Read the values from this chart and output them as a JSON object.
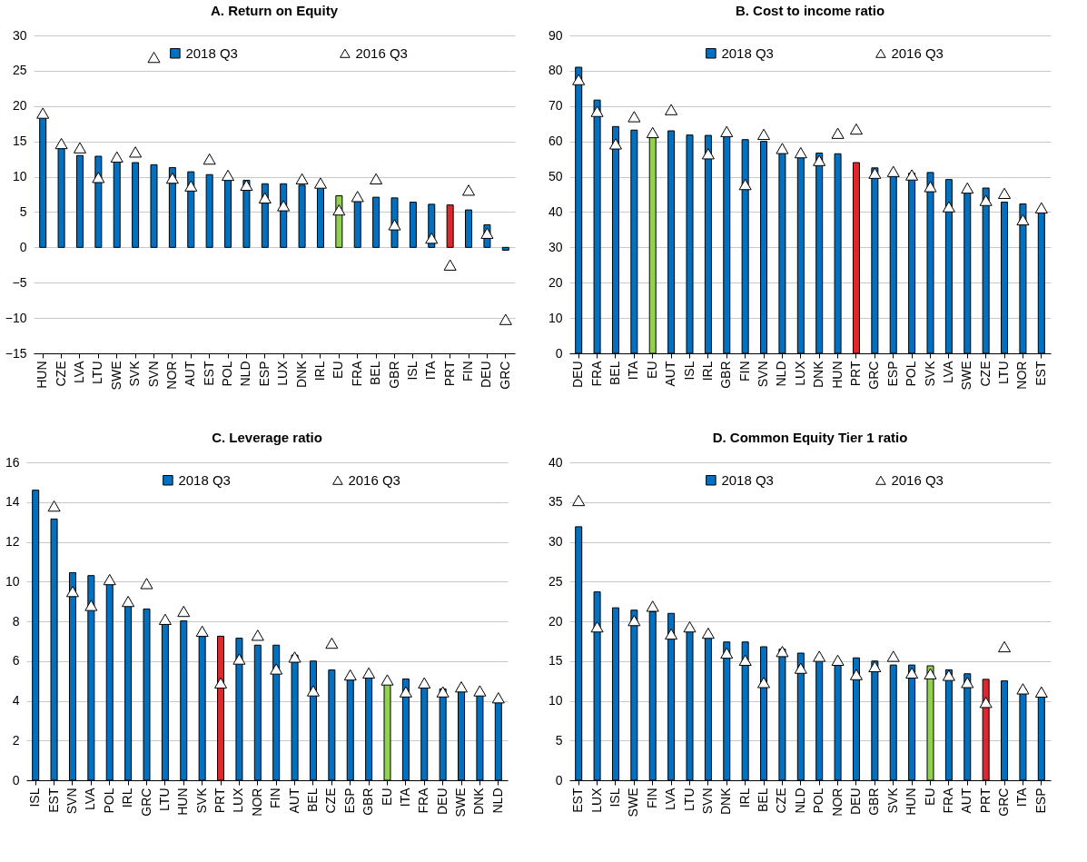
{
  "chart_data": [
    {
      "type": "bar",
      "title": "A. Return on Equity",
      "categories": [
        "HUN",
        "CZE",
        "LVA",
        "LTU",
        "SWE",
        "SVK",
        "SVN",
        "NOR",
        "AUT",
        "EST",
        "POL",
        "NLD",
        "ESP",
        "LUX",
        "DNK",
        "IRL",
        "EU",
        "FRA",
        "BEL",
        "GBR",
        "ISL",
        "ITA",
        "PRT",
        "FIN",
        "DEU",
        "GRC"
      ],
      "series": [
        {
          "name": "2018 Q3",
          "color": "#0070c0",
          "colors": [
            "#0070c0",
            "#0070c0",
            "#0070c0",
            "#0070c0",
            "#0070c0",
            "#0070c0",
            "#0070c0",
            "#0070c0",
            "#0070c0",
            "#0070c0",
            "#0070c0",
            "#0070c0",
            "#0070c0",
            "#0070c0",
            "#0070c0",
            "#0070c0",
            "#92d050",
            "#0070c0",
            "#0070c0",
            "#0070c0",
            "#0070c0",
            "#0070c0",
            "#e0262a",
            "#0070c0",
            "#0070c0",
            "#0070c0"
          ],
          "values": [
            18.5,
            14,
            13,
            12.9,
            12.2,
            12,
            11.7,
            11.3,
            10.7,
            10.3,
            9.7,
            9.5,
            9,
            9,
            8.8,
            8.5,
            7.3,
            6.6,
            7.1,
            7,
            6.4,
            6.1,
            6,
            5.3,
            3.2,
            -0.4
          ]
        },
        {
          "name": "2016 Q3",
          "type": "scatter",
          "color": "#ffffff",
          "values": [
            19,
            14.7,
            14.1,
            9.9,
            12.8,
            13.5,
            26.9,
            9.8,
            8.7,
            12.5,
            10.2,
            8.8,
            7,
            5.9,
            9.7,
            9.1,
            5.3,
            7.2,
            9.7,
            3.2,
            null,
            1.3,
            -2.5,
            8.1,
            2,
            -10.2
          ]
        }
      ],
      "ylim": [
        -15,
        30
      ],
      "yticks": [
        -15,
        -10,
        -5,
        0,
        5,
        10,
        15,
        20,
        25,
        30
      ],
      "grid": "y",
      "legend": "top",
      "marker": "triangle"
    },
    {
      "type": "bar",
      "title": "B. Cost to income ratio",
      "categories": [
        "DEU",
        "FRA",
        "BEL",
        "ITA",
        "EU",
        "AUT",
        "ISL",
        "IRL",
        "GBR",
        "FIN",
        "SVN",
        "NLD",
        "LUX",
        "DNK",
        "HUN",
        "PRT",
        "GRC",
        "ESP",
        "POL",
        "SVK",
        "LVA",
        "SWE",
        "CZE",
        "LTU",
        "NOR",
        "EST"
      ],
      "series": [
        {
          "name": "2018 Q3",
          "color": "#0070c0",
          "colors": [
            "#0070c0",
            "#0070c0",
            "#0070c0",
            "#0070c0",
            "#92d050",
            "#0070c0",
            "#0070c0",
            "#0070c0",
            "#0070c0",
            "#0070c0",
            "#0070c0",
            "#0070c0",
            "#0070c0",
            "#0070c0",
            "#0070c0",
            "#e0262a",
            "#0070c0",
            "#0070c0",
            "#0070c0",
            "#0070c0",
            "#0070c0",
            "#0070c0",
            "#0070c0",
            "#0070c0",
            "#0070c0",
            "#0070c0"
          ],
          "values": [
            81,
            71.7,
            64.2,
            63.2,
            61.6,
            63,
            61.8,
            61.7,
            61.5,
            60.5,
            60,
            57,
            55.8,
            56.7,
            56.5,
            54,
            52.5,
            50.5,
            51,
            51.2,
            49.2,
            45.7,
            46.8,
            42.8,
            42.3,
            39.8
          ]
        },
        {
          "name": "2016 Q3",
          "type": "scatter",
          "color": "#ffffff",
          "values": [
            77.5,
            68.5,
            59.3,
            67,
            62.5,
            69,
            null,
            56.5,
            62.8,
            47.8,
            62,
            58,
            56.8,
            54.6,
            62.3,
            63.5,
            51,
            51.5,
            50.5,
            47.2,
            41.5,
            46.8,
            43.3,
            45.3,
            37.8,
            41.2
          ]
        }
      ],
      "ylim": [
        0,
        90
      ],
      "yticks": [
        0,
        10,
        20,
        30,
        40,
        50,
        60,
        70,
        80,
        90
      ],
      "grid": "y",
      "legend": "top",
      "marker": "triangle"
    },
    {
      "type": "bar",
      "title": "C. Leverage ratio",
      "categories": [
        "ISL",
        "EST",
        "SVN",
        "LVA",
        "POL",
        "IRL",
        "GRC",
        "LTU",
        "HUN",
        "SVK",
        "PRT",
        "LUX",
        "NOR",
        "FIN",
        "AUT",
        "BEL",
        "CZE",
        "ESP",
        "GBR",
        "EU",
        "ITA",
        "FRA",
        "DEU",
        "SWE",
        "DNK",
        "NLD"
      ],
      "series": [
        {
          "name": "2018 Q3",
          "color": "#0070c0",
          "colors": [
            "#0070c0",
            "#0070c0",
            "#0070c0",
            "#0070c0",
            "#0070c0",
            "#0070c0",
            "#0070c0",
            "#0070c0",
            "#0070c0",
            "#0070c0",
            "#e0262a",
            "#0070c0",
            "#0070c0",
            "#0070c0",
            "#0070c0",
            "#0070c0",
            "#0070c0",
            "#0070c0",
            "#0070c0",
            "#92d050",
            "#0070c0",
            "#0070c0",
            "#0070c0",
            "#0070c0",
            "#0070c0",
            "#0070c0"
          ],
          "values": [
            14.6,
            13.15,
            10.45,
            10.3,
            9.9,
            8.8,
            8.62,
            7.95,
            8.02,
            7.3,
            7.25,
            7.15,
            6.8,
            6.8,
            6.3,
            6,
            5.55,
            5.2,
            5.2,
            4.9,
            5.1,
            4.75,
            4.6,
            4.5,
            4.35,
            3.95
          ]
        },
        {
          "name": "2016 Q3",
          "type": "scatter",
          "color": "#ffffff",
          "values": [
            null,
            13.8,
            9.5,
            8.8,
            10.1,
            9,
            9.9,
            8.1,
            8.5,
            7.5,
            4.9,
            6.1,
            7.3,
            5.6,
            6.2,
            4.5,
            6.9,
            5.3,
            5.4,
            5.05,
            4.45,
            4.9,
            4.45,
            4.7,
            4.5,
            4.15
          ]
        }
      ],
      "ylim": [
        0,
        16
      ],
      "yticks": [
        0,
        2,
        4,
        6,
        8,
        10,
        12,
        14,
        16
      ],
      "grid": "y",
      "legend": "top",
      "marker": "triangle"
    },
    {
      "type": "bar",
      "title": "D. Common Equity Tier 1 ratio",
      "categories": [
        "EST",
        "LUX",
        "ISL",
        "SWE",
        "FIN",
        "LVA",
        "LTU",
        "SVN",
        "DNK",
        "IRL",
        "BEL",
        "CZE",
        "NLD",
        "POL",
        "NOR",
        "DEU",
        "GBR",
        "SVK",
        "HUN",
        "EU",
        "FRA",
        "AUT",
        "PRT",
        "GRC",
        "ITA",
        "ESP"
      ],
      "series": [
        {
          "name": "2018 Q3",
          "color": "#0070c0",
          "colors": [
            "#0070c0",
            "#0070c0",
            "#0070c0",
            "#0070c0",
            "#0070c0",
            "#0070c0",
            "#0070c0",
            "#0070c0",
            "#0070c0",
            "#0070c0",
            "#0070c0",
            "#0070c0",
            "#0070c0",
            "#0070c0",
            "#0070c0",
            "#0070c0",
            "#0070c0",
            "#0070c0",
            "#0070c0",
            "#92d050",
            "#0070c0",
            "#0070c0",
            "#e0262a",
            "#0070c0",
            "#0070c0",
            "#0070c0"
          ],
          "values": [
            31.9,
            23.7,
            21.7,
            21.4,
            21.2,
            21,
            19,
            18.2,
            17.4,
            17.4,
            16.8,
            16.5,
            16,
            15.5,
            15,
            15.4,
            15,
            14.5,
            14.5,
            14.4,
            13.9,
            13.4,
            12.7,
            12.5,
            11.5,
            10.6
          ]
        },
        {
          "name": "2016 Q3",
          "type": "scatter",
          "color": "#ffffff",
          "values": [
            35.2,
            19.3,
            null,
            20.1,
            21.9,
            18.4,
            19.3,
            18.5,
            16,
            15.1,
            12.3,
            16.2,
            14.1,
            15.6,
            15.1,
            13.3,
            14.3,
            15.6,
            13.5,
            13.4,
            13.2,
            12.3,
            9.8,
            16.8,
            11.5,
            11.1
          ]
        }
      ],
      "ylim": [
        0,
        40
      ],
      "yticks": [
        0,
        5,
        10,
        15,
        20,
        25,
        30,
        35,
        40
      ],
      "grid": "y",
      "legend": "top",
      "marker": "triangle"
    }
  ]
}
